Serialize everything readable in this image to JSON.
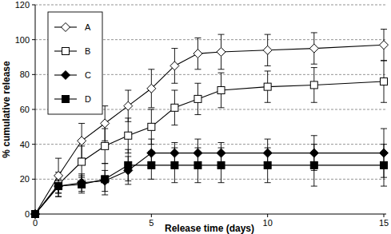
{
  "chart_data": {
    "type": "line",
    "x_label": "Release time (days)",
    "y_label": "% cumulative release",
    "x": [
      0,
      1,
      2,
      3,
      4,
      5,
      6,
      7,
      8,
      10,
      12,
      15
    ],
    "xlim": [
      0,
      15
    ],
    "xticks": [
      0,
      5,
      10,
      15
    ],
    "ylim": [
      0,
      120
    ],
    "yticks": [
      0,
      20,
      40,
      60,
      80,
      100,
      120
    ],
    "grid": true,
    "legend": "upper-left",
    "series": [
      {
        "name": "A",
        "color": "#000000",
        "marker": "diamond-open",
        "line_style": "solid",
        "values": [
          0,
          22,
          42,
          52,
          62,
          72,
          85,
          92,
          93,
          94,
          95,
          97
        ],
        "errors": [
          0,
          10,
          10,
          10,
          9,
          11,
          10,
          9,
          10,
          9,
          9,
          9
        ]
      },
      {
        "name": "B",
        "color": "#000000",
        "marker": "square-open",
        "line_style": "solid",
        "values": [
          0,
          17,
          30,
          39,
          45,
          50,
          61,
          66,
          71,
          73,
          74,
          76
        ],
        "errors": [
          0,
          7,
          9,
          10,
          10,
          10,
          10,
          9,
          10,
          9,
          10,
          12
        ]
      },
      {
        "name": "C",
        "color": "#000000",
        "marker": "diamond",
        "line_style": "solid",
        "values": [
          0,
          16,
          18,
          19,
          25,
          35,
          35,
          35,
          35,
          35,
          35,
          35
        ],
        "errors": [
          0,
          4,
          5,
          6,
          8,
          8,
          6,
          8,
          6,
          8,
          10,
          14
        ]
      },
      {
        "name": "D",
        "color": "#000000",
        "marker": "square",
        "line_style": "solid",
        "values": [
          0,
          16,
          17,
          20,
          28,
          28,
          28,
          28,
          28,
          28,
          28,
          28
        ],
        "errors": [
          0,
          6,
          5,
          9,
          9,
          8,
          10,
          10,
          10,
          10,
          12,
          12
        ]
      }
    ]
  }
}
